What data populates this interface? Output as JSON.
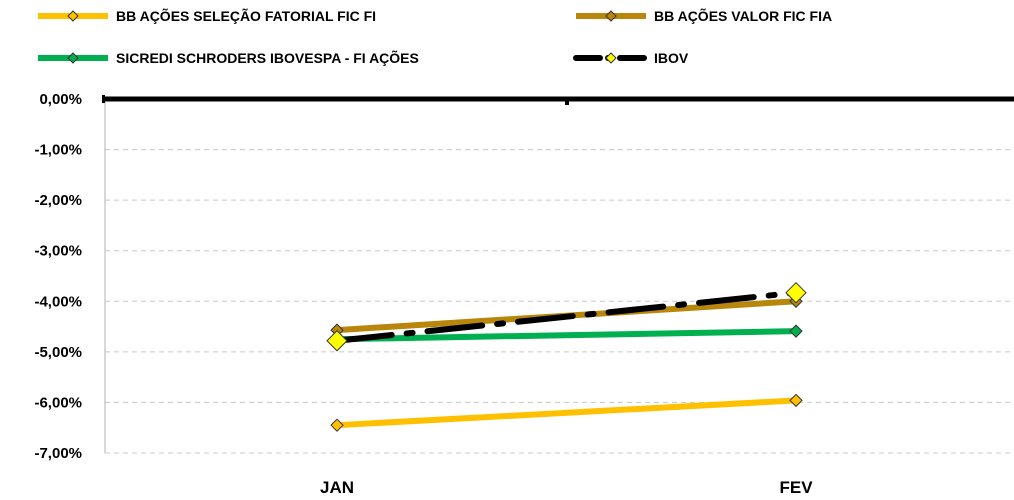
{
  "chart_data": {
    "type": "line",
    "title": "",
    "xlabel": "",
    "ylabel": "",
    "categories": [
      "JAN",
      "FEV"
    ],
    "ylim": [
      -0.07,
      0.0
    ],
    "ytick_values": [
      0,
      -0.01,
      -0.02,
      -0.03,
      -0.04,
      -0.05,
      -0.06,
      -0.07
    ],
    "ytick_labels": [
      "0,00%",
      "-1,00%",
      "-2,00%",
      "-3,00%",
      "-4,00%",
      "-5,00%",
      "-6,00%",
      "-7,00%"
    ],
    "grid": "horizontal dashed",
    "legend_position": "top",
    "series": [
      {
        "name": "BB AÇÕES SELEÇÃO FATORIAL FIC FI",
        "values": [
          -0.0645,
          -0.0596
        ],
        "color": "#FFC000",
        "marker_color": "#FFC000",
        "style": "solid"
      },
      {
        "name": "BB AÇÕES VALOR FIC FIA",
        "values": [
          -0.0457,
          -0.04
        ],
        "color": "#B8860B",
        "marker_color": "#B8860B",
        "style": "solid"
      },
      {
        "name": "SICREDI SCHRODERS IBOVESPA - FI AÇÕES",
        "values": [
          -0.0475,
          -0.0459
        ],
        "color": "#00B050",
        "marker_color": "#00B050",
        "style": "solid"
      },
      {
        "name": "IBOV",
        "values": [
          -0.0478,
          -0.0383
        ],
        "color": "#000000",
        "marker_color": "#FFFF00",
        "style": "dashdot"
      }
    ]
  }
}
